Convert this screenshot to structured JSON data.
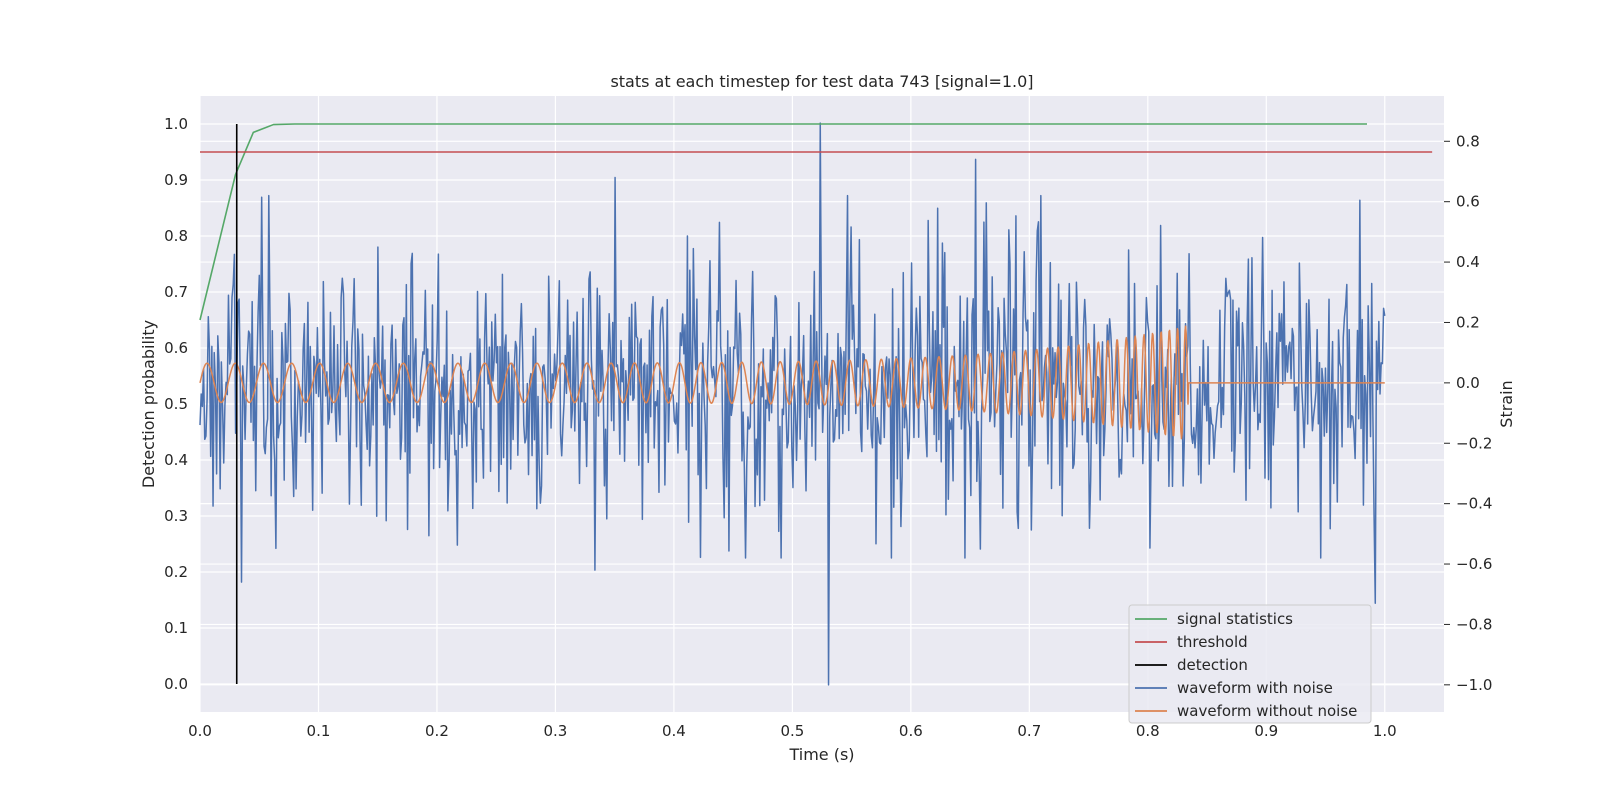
{
  "chart_data": {
    "type": "line",
    "title": "stats at each timestep for test data 743 [signal=1.0]",
    "xlabel": "Time (s)",
    "ylabel_left": "Detection probability",
    "ylabel_right": "Strain",
    "xlim": [
      0.0,
      1.05
    ],
    "ylim_left": [
      -0.05,
      1.05
    ],
    "ylim_right": [
      -1.09,
      0.95
    ],
    "xticks": [
      "0.0",
      "0.1",
      "0.2",
      "0.3",
      "0.4",
      "0.5",
      "0.6",
      "0.7",
      "0.8",
      "0.9",
      "1.0"
    ],
    "yticks_left": [
      "0.0",
      "0.1",
      "0.2",
      "0.3",
      "0.4",
      "0.5",
      "0.6",
      "0.7",
      "0.8",
      "0.9",
      "1.0"
    ],
    "yticks_right": [
      "−1.0",
      "−0.8",
      "−0.6",
      "−0.4",
      "−0.2",
      "0.0",
      "0.2",
      "0.4",
      "0.6",
      "0.8"
    ],
    "grid": true,
    "legend_position": "lower-right",
    "series": [
      {
        "name": "signal statistics",
        "axis": "left",
        "color": "#55a868",
        "x": [
          0.0,
          0.015,
          0.03,
          0.045,
          0.062,
          0.08,
          0.1,
          0.2,
          0.4,
          0.6,
          0.8,
          0.985
        ],
        "y": [
          0.65,
          0.78,
          0.91,
          0.985,
          0.999,
          1.0,
          1.0,
          1.0,
          1.0,
          1.0,
          1.0,
          1.0
        ]
      },
      {
        "name": "threshold",
        "axis": "left",
        "color": "#c44e52",
        "x": [
          0.0,
          1.04
        ],
        "y": [
          0.95,
          0.95
        ]
      },
      {
        "name": "detection",
        "axis": "left",
        "color": "#000000",
        "x": [
          0.031,
          0.031
        ],
        "y": [
          0.0,
          1.0
        ]
      },
      {
        "name": "waveform with noise",
        "axis": "right",
        "color": "#4c72b0",
        "generated": "noise",
        "x_range": [
          0.0,
          1.0
        ],
        "n_points": 1000,
        "std": 0.22,
        "peaks": [
          {
            "x": 0.524,
            "y": 0.86
          },
          {
            "x": 0.531,
            "y": -1.0
          },
          {
            "x": 0.35,
            "y": 0.68
          },
          {
            "x": 0.655,
            "y": 0.74
          },
          {
            "x": 0.992,
            "y": -0.73
          },
          {
            "x": 0.333,
            "y": -0.62
          },
          {
            "x": 0.035,
            "y": -0.66
          }
        ]
      },
      {
        "name": "waveform without noise",
        "axis": "right",
        "color": "#dd8452",
        "generated": "chirp",
        "x_range": [
          0.0,
          1.0
        ],
        "merger_time": 0.834,
        "amplitude_start": 0.065,
        "amplitude_end": 0.19,
        "freq_start_hz": 42,
        "freq_end_hz": 150
      }
    ]
  }
}
